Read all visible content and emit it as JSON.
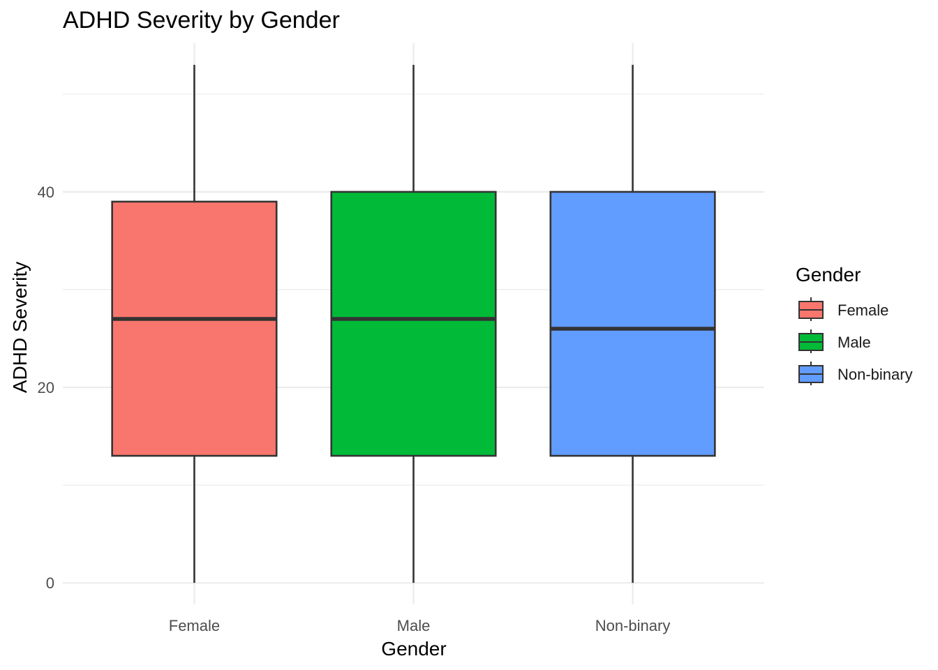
{
  "chart_data": {
    "type": "boxplot",
    "title": "ADHD Severity by Gender",
    "xlabel": "Gender",
    "ylabel": "ADHD Severity",
    "ylim": [
      -2.2,
      55.2
    ],
    "y_ticks": [
      0,
      20,
      40
    ],
    "grid": true,
    "legend": {
      "title": "Gender",
      "placement": "right"
    },
    "categories": [
      "Female",
      "Male",
      "Non-binary"
    ],
    "series": [
      {
        "name": "Female",
        "color": "#F8766D",
        "min": 0,
        "q1": 13,
        "median": 27,
        "q3": 39,
        "max": 53
      },
      {
        "name": "Male",
        "color": "#00BA38",
        "min": 0,
        "q1": 13,
        "median": 27,
        "q3": 40,
        "max": 53
      },
      {
        "name": "Non-binary",
        "color": "#619CFF",
        "min": 0,
        "q1": 13,
        "median": 26,
        "q3": 40,
        "max": 53
      }
    ]
  }
}
